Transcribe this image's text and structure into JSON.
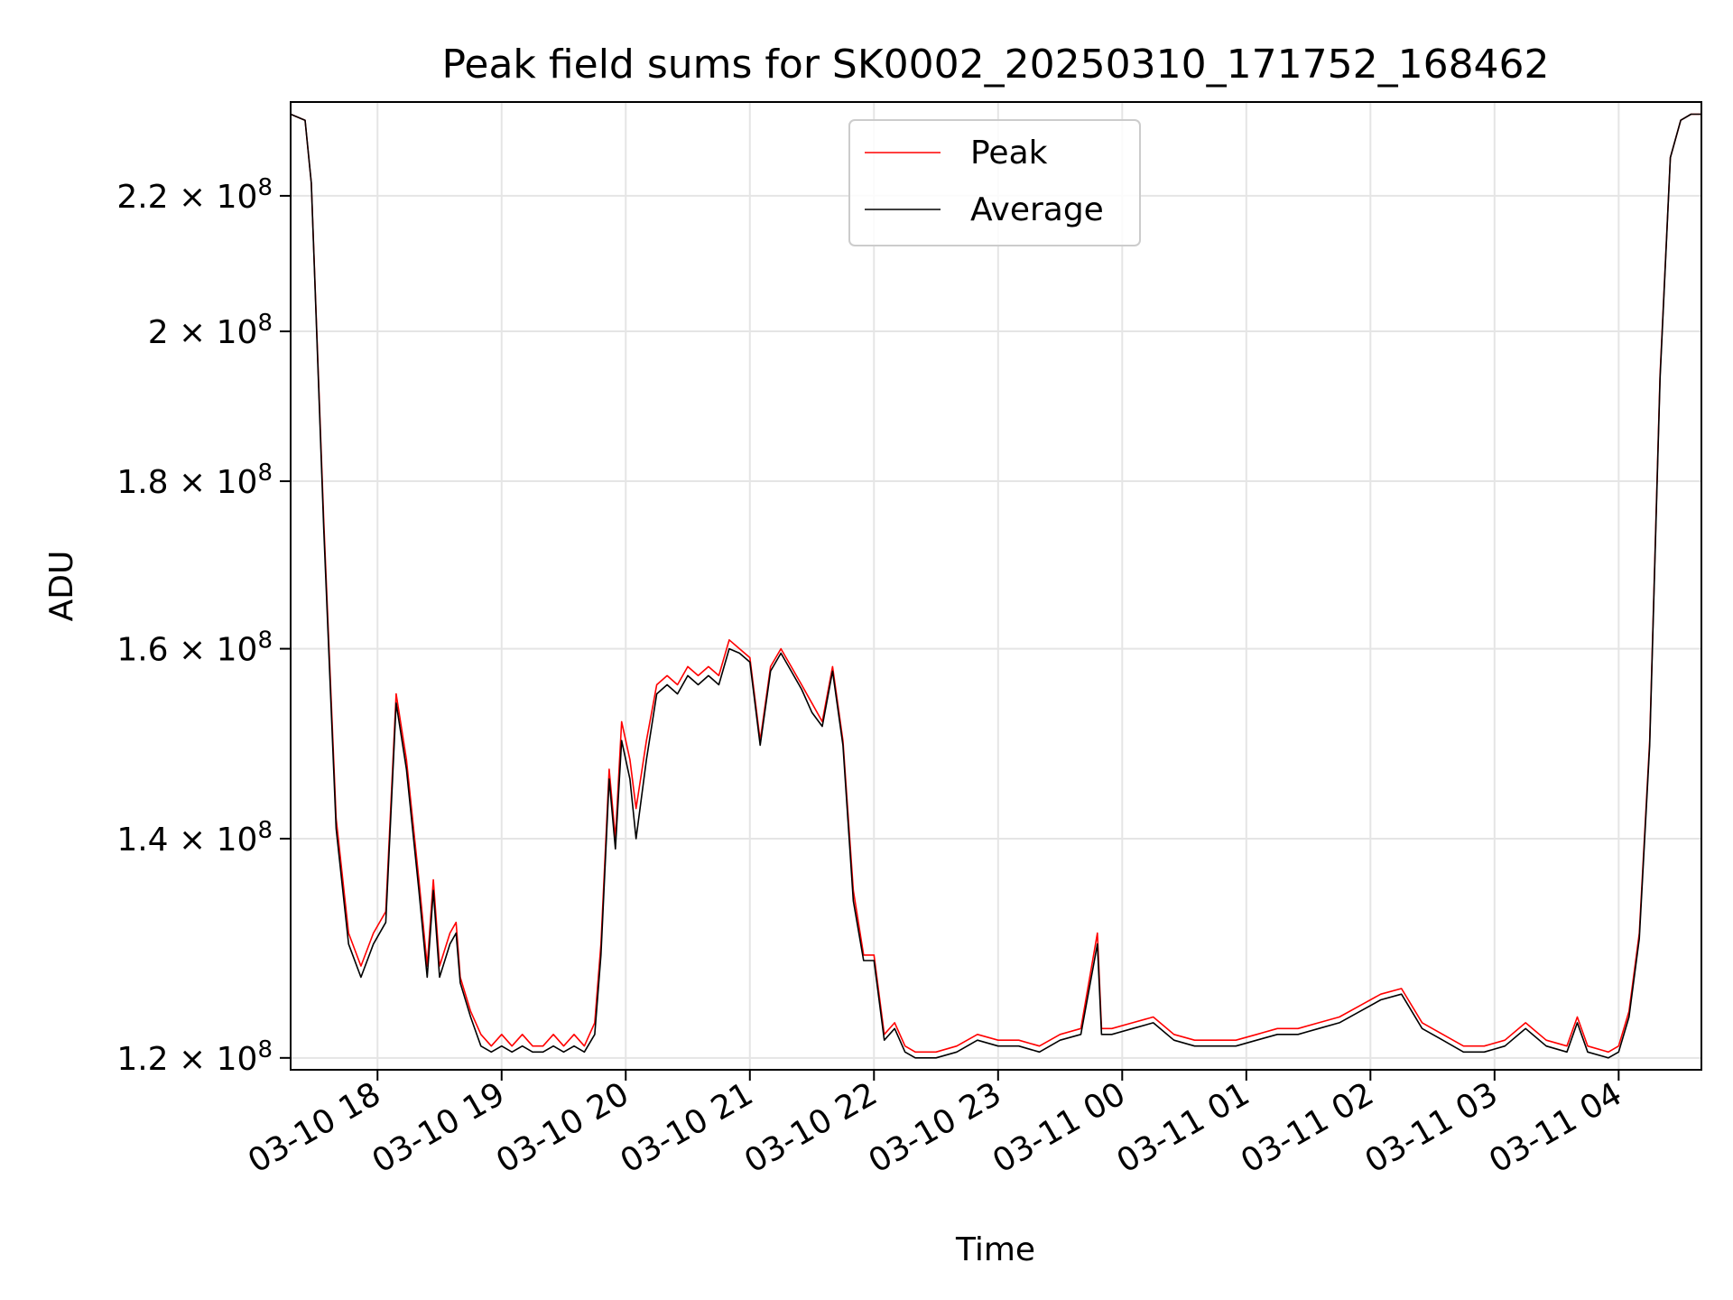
{
  "chart_data": {
    "type": "line",
    "title": "Peak field sums for SK0002_20250310_171752_168462",
    "xlabel": "Time",
    "ylabel": "ADU",
    "y_scale": "log",
    "grid": true,
    "legend_position": "upper center",
    "xlim": [
      "2025-03-10 17:18",
      "2025-03-11 04:40"
    ],
    "ylim": [
      119000000,
      235000000
    ],
    "x_ticks": [
      {
        "t": "2025-03-10 18:00",
        "label": "03-10 18"
      },
      {
        "t": "2025-03-10 19:00",
        "label": "03-10 19"
      },
      {
        "t": "2025-03-10 20:00",
        "label": "03-10 20"
      },
      {
        "t": "2025-03-10 21:00",
        "label": "03-10 21"
      },
      {
        "t": "2025-03-10 22:00",
        "label": "03-10 22"
      },
      {
        "t": "2025-03-10 23:00",
        "label": "03-10 23"
      },
      {
        "t": "2025-03-11 00:00",
        "label": "03-11 00"
      },
      {
        "t": "2025-03-11 01:00",
        "label": "03-11 01"
      },
      {
        "t": "2025-03-11 02:00",
        "label": "03-11 02"
      },
      {
        "t": "2025-03-11 03:00",
        "label": "03-11 03"
      },
      {
        "t": "2025-03-11 04:00",
        "label": "03-11 04"
      }
    ],
    "y_ticks": [
      {
        "value": 120000000,
        "mant": "1.2",
        "exp": "8"
      },
      {
        "value": 140000000,
        "mant": "1.4",
        "exp": "8"
      },
      {
        "value": 160000000,
        "mant": "1.6",
        "exp": "8"
      },
      {
        "value": 180000000,
        "mant": "1.8",
        "exp": "8"
      },
      {
        "value": 200000000,
        "mant": "2",
        "exp": "8"
      },
      {
        "value": 220000000,
        "mant": "2.2",
        "exp": "8"
      }
    ],
    "series": [
      {
        "name": "Peak",
        "color": "#ff0000",
        "x": [
          "2025-03-10 17:18",
          "2025-03-10 17:25",
          "2025-03-10 17:28",
          "2025-03-10 17:34",
          "2025-03-10 17:40",
          "2025-03-10 17:46",
          "2025-03-10 17:52",
          "2025-03-10 17:58",
          "2025-03-10 18:04",
          "2025-03-10 18:09",
          "2025-03-10 18:14",
          "2025-03-10 18:20",
          "2025-03-10 18:24",
          "2025-03-10 18:27",
          "2025-03-10 18:30",
          "2025-03-10 18:35",
          "2025-03-10 18:38",
          "2025-03-10 18:40",
          "2025-03-10 18:45",
          "2025-03-10 18:50",
          "2025-03-10 18:55",
          "2025-03-10 19:00",
          "2025-03-10 19:05",
          "2025-03-10 19:10",
          "2025-03-10 19:15",
          "2025-03-10 19:20",
          "2025-03-10 19:25",
          "2025-03-10 19:30",
          "2025-03-10 19:35",
          "2025-03-10 19:40",
          "2025-03-10 19:45",
          "2025-03-10 19:48",
          "2025-03-10 19:52",
          "2025-03-10 19:55",
          "2025-03-10 19:58",
          "2025-03-10 20:02",
          "2025-03-10 20:05",
          "2025-03-10 20:10",
          "2025-03-10 20:15",
          "2025-03-10 20:20",
          "2025-03-10 20:25",
          "2025-03-10 20:30",
          "2025-03-10 20:35",
          "2025-03-10 20:40",
          "2025-03-10 20:45",
          "2025-03-10 20:50",
          "2025-03-10 20:55",
          "2025-03-10 21:00",
          "2025-03-10 21:05",
          "2025-03-10 21:10",
          "2025-03-10 21:15",
          "2025-03-10 21:20",
          "2025-03-10 21:25",
          "2025-03-10 21:30",
          "2025-03-10 21:35",
          "2025-03-10 21:40",
          "2025-03-10 21:45",
          "2025-03-10 21:50",
          "2025-03-10 21:55",
          "2025-03-10 22:00",
          "2025-03-10 22:05",
          "2025-03-10 22:10",
          "2025-03-10 22:15",
          "2025-03-10 22:20",
          "2025-03-10 22:30",
          "2025-03-10 22:40",
          "2025-03-10 22:50",
          "2025-03-10 23:00",
          "2025-03-10 23:10",
          "2025-03-10 23:20",
          "2025-03-10 23:30",
          "2025-03-10 23:40",
          "2025-03-10 23:48",
          "2025-03-10 23:50",
          "2025-03-10 23:55",
          "2025-03-11 00:05",
          "2025-03-11 00:15",
          "2025-03-11 00:25",
          "2025-03-11 00:35",
          "2025-03-11 00:45",
          "2025-03-11 00:55",
          "2025-03-11 01:05",
          "2025-03-11 01:15",
          "2025-03-11 01:25",
          "2025-03-11 01:35",
          "2025-03-11 01:45",
          "2025-03-11 01:55",
          "2025-03-11 02:05",
          "2025-03-11 02:15",
          "2025-03-11 02:25",
          "2025-03-11 02:35",
          "2025-03-11 02:45",
          "2025-03-11 02:55",
          "2025-03-11 03:05",
          "2025-03-11 03:15",
          "2025-03-11 03:25",
          "2025-03-11 03:35",
          "2025-03-11 03:40",
          "2025-03-11 03:45",
          "2025-03-11 03:55",
          "2025-03-11 04:00",
          "2025-03-11 04:05",
          "2025-03-11 04:10",
          "2025-03-11 04:15",
          "2025-03-11 04:20",
          "2025-03-11 04:25",
          "2025-03-11 04:30",
          "2025-03-11 04:35",
          "2025-03-11 04:40"
        ],
        "y": [
          233000000,
          232000000,
          222000000,
          175000000,
          142000000,
          131000000,
          128000000,
          131000000,
          133000000,
          155000000,
          148000000,
          136000000,
          128000000,
          136000000,
          128000000,
          131000000,
          132000000,
          127000000,
          124000000,
          122000000,
          121000000,
          122000000,
          121000000,
          122000000,
          121000000,
          121000000,
          122000000,
          121000000,
          122000000,
          121000000,
          123000000,
          130000000,
          147000000,
          140000000,
          152000000,
          148000000,
          143000000,
          150000000,
          156000000,
          157000000,
          156000000,
          158000000,
          157000000,
          158000000,
          157000000,
          161000000,
          160000000,
          159000000,
          150000000,
          158000000,
          160000000,
          158000000,
          156000000,
          154000000,
          152000000,
          158000000,
          150000000,
          135000000,
          129000000,
          129000000,
          122000000,
          123000000,
          121000000,
          120500000,
          120500000,
          121000000,
          122000000,
          121500000,
          121500000,
          121000000,
          122000000,
          122500000,
          131000000,
          122500000,
          122500000,
          123000000,
          123500000,
          122000000,
          121500000,
          121500000,
          121500000,
          122000000,
          122500000,
          122500000,
          123000000,
          123500000,
          124500000,
          125500000,
          126000000,
          123000000,
          122000000,
          121000000,
          121000000,
          121500000,
          123000000,
          121500000,
          121000000,
          123500000,
          121000000,
          120500000,
          121000000,
          124000000,
          131000000,
          150000000,
          194000000,
          226000000,
          232000000,
          233000000,
          233000000
        ]
      },
      {
        "name": "Average",
        "color": "#000000",
        "x": [
          "2025-03-10 17:18",
          "2025-03-10 17:25",
          "2025-03-10 17:28",
          "2025-03-10 17:34",
          "2025-03-10 17:40",
          "2025-03-10 17:46",
          "2025-03-10 17:52",
          "2025-03-10 17:58",
          "2025-03-10 18:04",
          "2025-03-10 18:09",
          "2025-03-10 18:14",
          "2025-03-10 18:20",
          "2025-03-10 18:24",
          "2025-03-10 18:27",
          "2025-03-10 18:30",
          "2025-03-10 18:35",
          "2025-03-10 18:38",
          "2025-03-10 18:40",
          "2025-03-10 18:45",
          "2025-03-10 18:50",
          "2025-03-10 18:55",
          "2025-03-10 19:00",
          "2025-03-10 19:05",
          "2025-03-10 19:10",
          "2025-03-10 19:15",
          "2025-03-10 19:20",
          "2025-03-10 19:25",
          "2025-03-10 19:30",
          "2025-03-10 19:35",
          "2025-03-10 19:40",
          "2025-03-10 19:45",
          "2025-03-10 19:48",
          "2025-03-10 19:52",
          "2025-03-10 19:55",
          "2025-03-10 19:58",
          "2025-03-10 20:02",
          "2025-03-10 20:05",
          "2025-03-10 20:10",
          "2025-03-10 20:15",
          "2025-03-10 20:20",
          "2025-03-10 20:25",
          "2025-03-10 20:30",
          "2025-03-10 20:35",
          "2025-03-10 20:40",
          "2025-03-10 20:45",
          "2025-03-10 20:50",
          "2025-03-10 20:55",
          "2025-03-10 21:00",
          "2025-03-10 21:05",
          "2025-03-10 21:10",
          "2025-03-10 21:15",
          "2025-03-10 21:20",
          "2025-03-10 21:25",
          "2025-03-10 21:30",
          "2025-03-10 21:35",
          "2025-03-10 21:40",
          "2025-03-10 21:45",
          "2025-03-10 21:50",
          "2025-03-10 21:55",
          "2025-03-10 22:00",
          "2025-03-10 22:05",
          "2025-03-10 22:10",
          "2025-03-10 22:15",
          "2025-03-10 22:20",
          "2025-03-10 22:30",
          "2025-03-10 22:40",
          "2025-03-10 22:50",
          "2025-03-10 23:00",
          "2025-03-10 23:10",
          "2025-03-10 23:20",
          "2025-03-10 23:30",
          "2025-03-10 23:40",
          "2025-03-10 23:48",
          "2025-03-10 23:50",
          "2025-03-10 23:55",
          "2025-03-11 00:05",
          "2025-03-11 00:15",
          "2025-03-11 00:25",
          "2025-03-11 00:35",
          "2025-03-11 00:45",
          "2025-03-11 00:55",
          "2025-03-11 01:05",
          "2025-03-11 01:15",
          "2025-03-11 01:25",
          "2025-03-11 01:35",
          "2025-03-11 01:45",
          "2025-03-11 01:55",
          "2025-03-11 02:05",
          "2025-03-11 02:15",
          "2025-03-11 02:25",
          "2025-03-11 02:35",
          "2025-03-11 02:45",
          "2025-03-11 02:55",
          "2025-03-11 03:05",
          "2025-03-11 03:15",
          "2025-03-11 03:25",
          "2025-03-11 03:35",
          "2025-03-11 03:40",
          "2025-03-11 03:45",
          "2025-03-11 03:55",
          "2025-03-11 04:00",
          "2025-03-11 04:05",
          "2025-03-11 04:10",
          "2025-03-11 04:15",
          "2025-03-11 04:20",
          "2025-03-11 04:25",
          "2025-03-11 04:30",
          "2025-03-11 04:35",
          "2025-03-11 04:40"
        ],
        "y": [
          233000000,
          232000000,
          222000000,
          174000000,
          141000000,
          130000000,
          127000000,
          130000000,
          132000000,
          154000000,
          147000000,
          135000000,
          127000000,
          135000000,
          127000000,
          130000000,
          131000000,
          126500000,
          123500000,
          121000000,
          120500000,
          121000000,
          120500000,
          121000000,
          120500000,
          120500000,
          121000000,
          120500000,
          121000000,
          120500000,
          122000000,
          129000000,
          146000000,
          139000000,
          150000000,
          146000000,
          140000000,
          148000000,
          155000000,
          156000000,
          155000000,
          157000000,
          156000000,
          157000000,
          156000000,
          160000000,
          159500000,
          158500000,
          149500000,
          157500000,
          159500000,
          157500000,
          155500000,
          153000000,
          151500000,
          157500000,
          149500000,
          134000000,
          128500000,
          128500000,
          121500000,
          122500000,
          120500000,
          120000000,
          120000000,
          120500000,
          121500000,
          121000000,
          121000000,
          120500000,
          121500000,
          122000000,
          130000000,
          122000000,
          122000000,
          122500000,
          123000000,
          121500000,
          121000000,
          121000000,
          121000000,
          121500000,
          122000000,
          122000000,
          122500000,
          123000000,
          124000000,
          125000000,
          125500000,
          122500000,
          121500000,
          120500000,
          120500000,
          121000000,
          122500000,
          121000000,
          120500000,
          123000000,
          120500000,
          120000000,
          120500000,
          123500000,
          130500000,
          149500000,
          193500000,
          226000000,
          232000000,
          233000000,
          233000000
        ]
      }
    ]
  }
}
